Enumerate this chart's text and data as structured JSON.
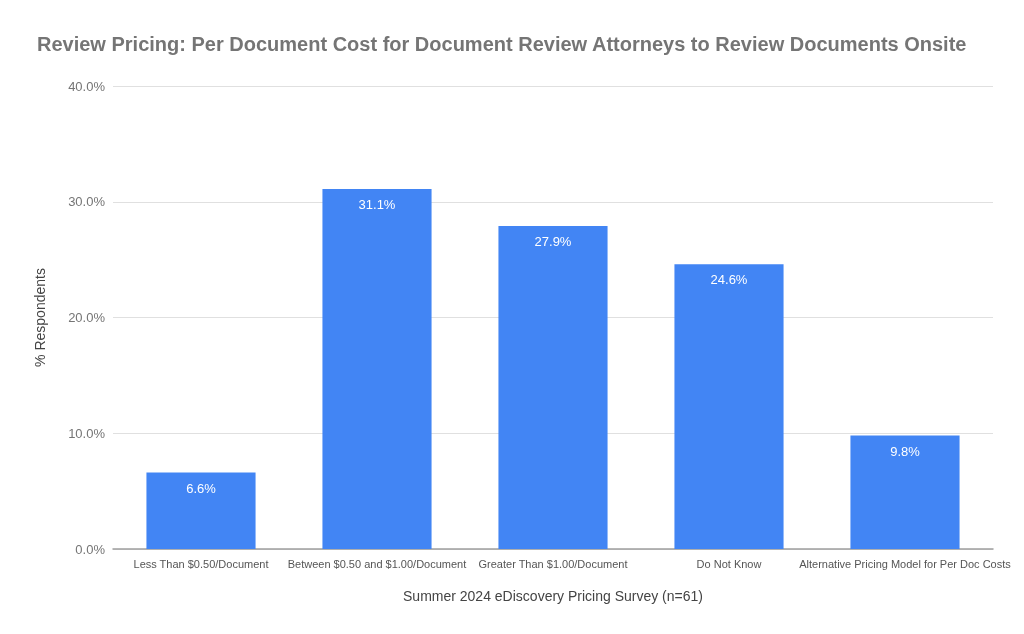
{
  "chart_data": {
    "type": "bar",
    "title": "Review Pricing: Per Document Cost for Document Review Attorneys to Review Documents Onsite",
    "xlabel": "Summer 2024 eDiscovery Pricing Survey (n=61)",
    "ylabel": "% Respondents",
    "categories": [
      "Less Than $0.50/Document",
      "Between $0.50 and $1.00/Document",
      "Greater Than $1.00/Document",
      "Do Not Know",
      "Alternative Pricing Model for Per Doc Costs"
    ],
    "values": [
      6.6,
      31.1,
      27.9,
      24.6,
      9.8
    ],
    "value_labels": [
      "6.6%",
      "31.1%",
      "27.9%",
      "24.6%",
      "9.8%"
    ],
    "color": "#4285f4",
    "ylim": [
      0,
      40
    ],
    "yticks": [
      {
        "value": 0,
        "label": "0.0%"
      },
      {
        "value": 10,
        "label": "10.0%"
      },
      {
        "value": 20,
        "label": "20.0%"
      },
      {
        "value": 30,
        "label": "30.0%"
      },
      {
        "value": 40,
        "label": "40.0%"
      }
    ],
    "grid": "y"
  }
}
